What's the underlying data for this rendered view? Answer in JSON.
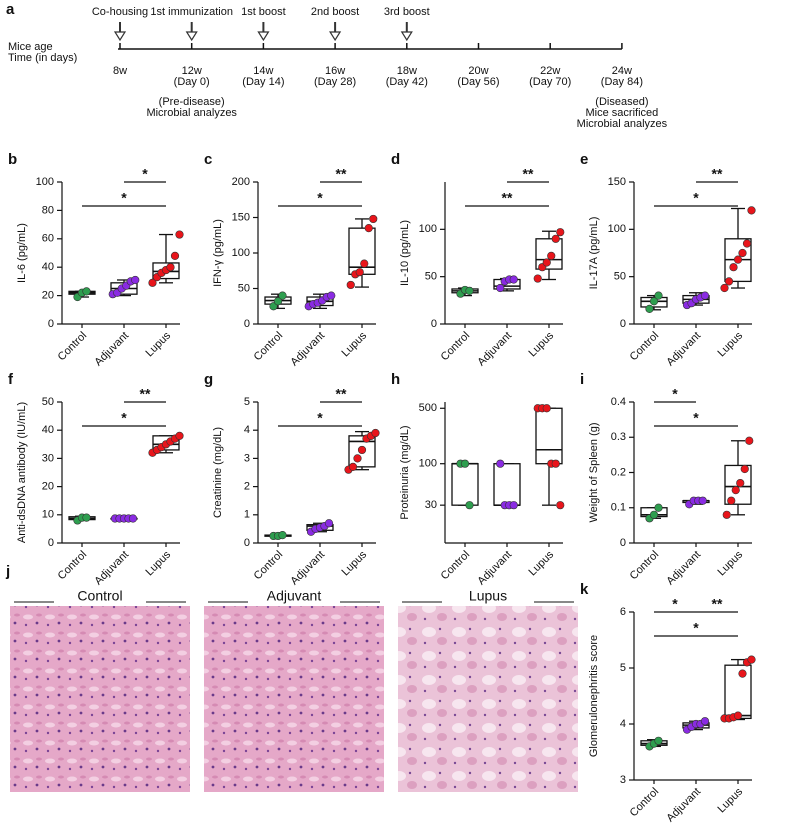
{
  "timeline": {
    "panel": "a",
    "row_labels": [
      "Mice age",
      "Time (in days)"
    ],
    "points": [
      {
        "age": "8w",
        "event": "Co-housing"
      },
      {
        "age": "12w",
        "day": "(Day 0)",
        "event": "1st immunization",
        "notes": [
          "(Pre-disease)",
          "Microbial analyzes"
        ]
      },
      {
        "age": "14w",
        "day": "(Day 14)",
        "event": "1st boost"
      },
      {
        "age": "16w",
        "day": "(Day 28)",
        "event": "2nd boost"
      },
      {
        "age": "18w",
        "day": "(Day 42)",
        "event": "3rd boost"
      },
      {
        "age": "20w",
        "day": "(Day 56)"
      },
      {
        "age": "22w",
        "day": "(Day 70)"
      },
      {
        "age": "24w",
        "day": "(Day 84)",
        "notes": [
          "(Diseased)",
          "Mice sacrificed",
          "Microbial analyzes"
        ]
      }
    ]
  },
  "chart_data": [
    {
      "type": "box",
      "panel": "b",
      "y_label": "IL-6 (pg/mL)",
      "categories": [
        "Control",
        "Adjuvant",
        "Lupus"
      ],
      "groups": [
        {
          "color": "#2e9e4f",
          "values": [
            19,
            22,
            23
          ],
          "box": [
            19,
            21,
            22,
            23,
            23
          ]
        },
        {
          "color": "#8a2be2",
          "values": [
            21,
            22,
            25,
            27,
            30,
            31
          ],
          "box": [
            20,
            21,
            25,
            29,
            31
          ]
        },
        {
          "color": "#e8151b",
          "values": [
            29,
            33,
            36,
            38,
            40,
            48,
            63
          ],
          "box": [
            29,
            32,
            37,
            43,
            63
          ]
        }
      ],
      "ylim": [
        0,
        100
      ],
      "yticks": [
        0,
        20,
        40,
        60,
        80,
        100
      ],
      "significance": [
        {
          "from": 1,
          "to": 2,
          "label": "*"
        },
        {
          "from": 0,
          "to": 2,
          "label": "*"
        }
      ]
    },
    {
      "type": "box",
      "panel": "c",
      "y_label": "IFN-γ (pg/mL)",
      "categories": [
        "Control",
        "Adjuvant",
        "Lupus"
      ],
      "groups": [
        {
          "color": "#2e9e4f",
          "values": [
            25,
            32,
            40
          ],
          "box": [
            22,
            28,
            33,
            38,
            42
          ]
        },
        {
          "color": "#8a2be2",
          "values": [
            25,
            28,
            30,
            33,
            38,
            40
          ],
          "box": [
            22,
            26,
            32,
            38,
            42
          ]
        },
        {
          "color": "#e8151b",
          "values": [
            55,
            70,
            73,
            85,
            135,
            148
          ],
          "box": [
            52,
            70,
            80,
            135,
            148
          ]
        }
      ],
      "ylim": [
        0,
        200
      ],
      "yticks": [
        0,
        50,
        100,
        150,
        200
      ],
      "significance": [
        {
          "from": 1,
          "to": 2,
          "label": "**"
        },
        {
          "from": 0,
          "to": 2,
          "label": "*"
        }
      ]
    },
    {
      "type": "box",
      "panel": "d",
      "y_label": "IL-10 (pg/mL)",
      "categories": [
        "Control",
        "Adjuvant",
        "Lupus"
      ],
      "groups": [
        {
          "color": "#2e9e4f",
          "values": [
            32,
            36,
            35
          ],
          "box": [
            30,
            33,
            35,
            37,
            38
          ]
        },
        {
          "color": "#8a2be2",
          "values": [
            38,
            45,
            47,
            47
          ],
          "box": [
            35,
            37,
            40,
            47,
            48
          ]
        },
        {
          "color": "#e8151b",
          "values": [
            48,
            60,
            65,
            72,
            90,
            97
          ],
          "box": [
            47,
            58,
            68,
            90,
            98
          ]
        }
      ],
      "ylim": [
        0,
        150
      ],
      "yticks": [
        0,
        50,
        100
      ],
      "significance": [
        {
          "from": 1,
          "to": 2,
          "label": "**"
        },
        {
          "from": 0,
          "to": 2,
          "label": "**"
        }
      ]
    },
    {
      "type": "box",
      "panel": "e",
      "y_label": "IL-17A (pg/mL)",
      "categories": [
        "Control",
        "Adjuvant",
        "Lupus"
      ],
      "groups": [
        {
          "color": "#2e9e4f",
          "values": [
            16,
            24,
            30
          ],
          "box": [
            15,
            18,
            24,
            28,
            30
          ]
        },
        {
          "color": "#8a2be2",
          "values": [
            20,
            22,
            26,
            28,
            30
          ],
          "box": [
            20,
            22,
            26,
            30,
            33
          ]
        },
        {
          "color": "#e8151b",
          "values": [
            38,
            45,
            60,
            68,
            75,
            85,
            120
          ],
          "box": [
            38,
            45,
            68,
            90,
            122
          ]
        }
      ],
      "ylim": [
        0,
        150
      ],
      "yticks": [
        0,
        50,
        100,
        150
      ],
      "significance": [
        {
          "from": 1,
          "to": 2,
          "label": "**"
        },
        {
          "from": 0,
          "to": 2,
          "label": "*"
        }
      ]
    },
    {
      "type": "box",
      "panel": "f",
      "y_label": "Anti-dsDNA antibody  (IU/mL)",
      "categories": [
        "Control",
        "Adjuvant",
        "Lupus"
      ],
      "groups": [
        {
          "color": "#2e9e4f",
          "values": [
            8,
            9,
            9
          ],
          "box": [
            8,
            8.3,
            8.7,
            9.3,
            9.5
          ]
        },
        {
          "color": "#8a2be2",
          "values": [
            8.7,
            8.7,
            8.7,
            8.7,
            8.7
          ],
          "box": [
            8.7,
            8.7,
            8.7,
            8.7,
            8.7
          ]
        },
        {
          "color": "#e8151b",
          "values": [
            32,
            33,
            34,
            35,
            36,
            37,
            38
          ],
          "box": [
            32,
            33,
            35,
            38,
            38
          ]
        }
      ],
      "ylim": [
        0,
        50
      ],
      "yticks": [
        0,
        10,
        20,
        30,
        40,
        50
      ],
      "significance": [
        {
          "from": 1,
          "to": 2,
          "label": "**"
        },
        {
          "from": 0,
          "to": 2,
          "label": "*"
        }
      ]
    },
    {
      "type": "box",
      "panel": "g",
      "y_label": "Creatinine (mg/dL)",
      "categories": [
        "Control",
        "Adjuvant",
        "Lupus"
      ],
      "groups": [
        {
          "color": "#2e9e4f",
          "values": [
            0.25,
            0.25,
            0.28
          ],
          "box": [
            0.22,
            0.24,
            0.26,
            0.28,
            0.3
          ]
        },
        {
          "color": "#8a2be2",
          "values": [
            0.4,
            0.5,
            0.55,
            0.6,
            0.7
          ],
          "box": [
            0.4,
            0.45,
            0.6,
            0.65,
            0.7
          ]
        },
        {
          "color": "#e8151b",
          "values": [
            2.6,
            2.7,
            3.0,
            3.3,
            3.7,
            3.8,
            3.9
          ],
          "box": [
            2.6,
            2.7,
            3.6,
            3.8,
            3.95
          ]
        }
      ],
      "ylim": [
        0,
        5
      ],
      "yticks": [
        0,
        1,
        2,
        3,
        4,
        5
      ],
      "significance": [
        {
          "from": 1,
          "to": 2,
          "label": "**"
        },
        {
          "from": 0,
          "to": 2,
          "label": "*"
        }
      ]
    },
    {
      "type": "box",
      "panel": "h",
      "y_label": "Proteinuria (mg/dL)",
      "categories": [
        "Control",
        "Adjuvant",
        "Lupus"
      ],
      "groups": [
        {
          "color": "#2e9e4f",
          "values": [
            100,
            100,
            30
          ],
          "box": [
            30,
            30,
            100,
            100,
            100
          ]
        },
        {
          "color": "#8a2be2",
          "values": [
            100,
            30,
            30,
            30
          ],
          "box": [
            30,
            30,
            30,
            100,
            100
          ]
        },
        {
          "color": "#e8151b",
          "values": [
            500,
            500,
            500,
            100,
            100,
            30
          ],
          "box": [
            30,
            100,
            150,
            500,
            500
          ]
        }
      ],
      "log": true,
      "ylim": [
        10,
        600
      ],
      "yticks": [
        30,
        100,
        500
      ]
    },
    {
      "type": "box",
      "panel": "i",
      "y_label": "Weight of Spleen (g)",
      "categories": [
        "Control",
        "Adjuvant",
        "Lupus"
      ],
      "groups": [
        {
          "color": "#2e9e4f",
          "values": [
            0.07,
            0.08,
            0.1
          ],
          "box": [
            0.07,
            0.075,
            0.08,
            0.1,
            0.1
          ]
        },
        {
          "color": "#8a2be2",
          "values": [
            0.11,
            0.12,
            0.12,
            0.12
          ],
          "box": [
            0.11,
            0.115,
            0.12,
            0.12,
            0.12
          ]
        },
        {
          "color": "#e8151b",
          "values": [
            0.08,
            0.12,
            0.15,
            0.17,
            0.21,
            0.29
          ],
          "box": [
            0.08,
            0.11,
            0.16,
            0.22,
            0.29
          ]
        }
      ],
      "ylim": [
        0,
        0.4
      ],
      "yticks": [
        0,
        0.1,
        0.2,
        0.3,
        0.4
      ],
      "significance": [
        {
          "from": 0,
          "to": 1,
          "label": "*"
        },
        {
          "from": 0,
          "to": 2,
          "label": "*"
        }
      ]
    },
    {
      "type": "box",
      "panel": "k",
      "y_label": "Glomerulonephritis  score",
      "categories": [
        "Control",
        "Adjuvant",
        "Lupus"
      ],
      "groups": [
        {
          "color": "#2e9e4f",
          "values": [
            3.6,
            3.65,
            3.7
          ],
          "box": [
            3.6,
            3.62,
            3.65,
            3.7,
            3.72
          ]
        },
        {
          "color": "#8a2be2",
          "values": [
            3.9,
            3.95,
            4.0,
            4.0,
            4.05
          ],
          "box": [
            3.9,
            3.93,
            3.98,
            4.02,
            4.05
          ]
        },
        {
          "color": "#e8151b",
          "values": [
            4.1,
            4.1,
            4.12,
            4.15,
            4.9,
            5.1,
            5.15
          ],
          "box": [
            4.08,
            4.1,
            4.15,
            5.05,
            5.15
          ]
        }
      ],
      "ylim": [
        3,
        6
      ],
      "yticks": [
        3,
        4,
        5,
        6
      ],
      "significance": [
        {
          "from": 0,
          "to": 1,
          "label": "*"
        },
        {
          "from": 1,
          "to": 2,
          "label": "**"
        },
        {
          "from": 0,
          "to": 2,
          "label": "*"
        }
      ]
    }
  ],
  "histology": {
    "panel": "j",
    "images": [
      {
        "label": "Control"
      },
      {
        "label": "Adjuvant"
      },
      {
        "label": "Lupus"
      }
    ]
  }
}
